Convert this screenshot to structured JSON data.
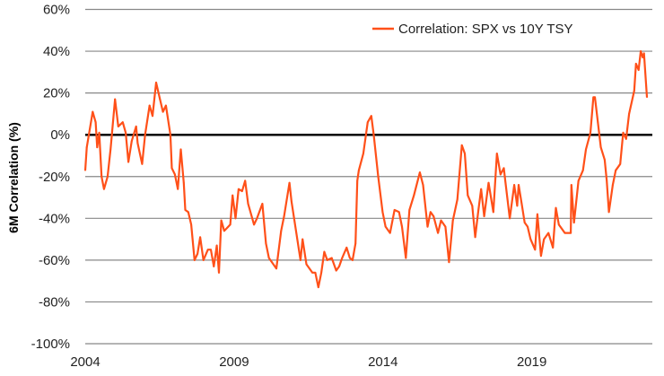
{
  "chart_data": {
    "type": "line",
    "title": "",
    "xlabel": "",
    "ylabel": "6M Correlation (%)",
    "xlim": [
      2004,
      2023.05
    ],
    "ylim": [
      -100,
      60
    ],
    "x_ticks": [
      2004,
      2009,
      2014,
      2019
    ],
    "x_tick_labels": [
      "2004",
      "2009",
      "2014",
      "2019"
    ],
    "y_ticks": [
      60,
      40,
      20,
      0,
      -20,
      -40,
      -60,
      -80,
      -100
    ],
    "y_tick_labels": [
      "60%",
      "40%",
      "20%",
      "0%",
      "-20%",
      "-40%",
      "-60%",
      "-80%",
      "-100%"
    ],
    "grid": "horizontal",
    "zero_line": true,
    "legend_position": "top-right",
    "series": [
      {
        "name": "Correlation: SPX vs 10Y TSY",
        "color": "#FF5019",
        "x": [
          2004.0,
          2004.05,
          2004.25,
          2004.35,
          2004.4,
          2004.47,
          2004.55,
          2004.63,
          2004.75,
          2004.85,
          2005.0,
          2005.11,
          2005.26,
          2005.36,
          2005.45,
          2005.56,
          2005.71,
          2005.76,
          2005.91,
          2006.01,
          2006.16,
          2006.26,
          2006.38,
          2006.51,
          2006.61,
          2006.71,
          2006.86,
          2006.91,
          2007.01,
          2007.11,
          2007.21,
          2007.31,
          2007.36,
          2007.46,
          2007.56,
          2007.67,
          2007.77,
          2007.86,
          2007.97,
          2008.12,
          2008.22,
          2008.32,
          2008.42,
          2008.49,
          2008.57,
          2008.67,
          2008.87,
          2008.95,
          2009.05,
          2009.15,
          2009.27,
          2009.37,
          2009.47,
          2009.67,
          2009.77,
          2009.95,
          2010.07,
          2010.17,
          2010.42,
          2010.58,
          2010.68,
          2010.86,
          2010.93,
          2011.08,
          2011.23,
          2011.3,
          2011.43,
          2011.63,
          2011.73,
          2011.83,
          2011.93,
          2012.03,
          2012.13,
          2012.28,
          2012.43,
          2012.53,
          2012.63,
          2012.78,
          2012.89,
          2012.98,
          2013.08,
          2013.14,
          2013.19,
          2013.34,
          2013.49,
          2013.61,
          2013.69,
          2013.84,
          2013.99,
          2014.09,
          2014.24,
          2014.39,
          2014.54,
          2014.64,
          2014.77,
          2014.89,
          2015.04,
          2015.24,
          2015.35,
          2015.5,
          2015.6,
          2015.7,
          2015.85,
          2015.95,
          2016.1,
          2016.22,
          2016.35,
          2016.5,
          2016.65,
          2016.75,
          2016.85,
          2017.0,
          2017.1,
          2017.2,
          2017.3,
          2017.4,
          2017.55,
          2017.71,
          2017.83,
          2017.95,
          2018.06,
          2018.11,
          2018.26,
          2018.41,
          2018.51,
          2018.56,
          2018.66,
          2018.76,
          2018.86,
          2018.96,
          2019.11,
          2019.19,
          2019.31,
          2019.41,
          2019.56,
          2019.71,
          2019.81,
          2019.91,
          2020.11,
          2020.31,
          2020.33,
          2020.42,
          2020.57,
          2020.72,
          2020.82,
          2020.97,
          2021.07,
          2021.12,
          2021.22,
          2021.32,
          2021.45,
          2021.52,
          2021.59,
          2021.72,
          2021.82,
          2021.97,
          2022.07,
          2022.17,
          2022.27,
          2022.44,
          2022.5,
          2022.59,
          2022.66,
          2022.73,
          2022.77,
          2022.87
        ],
        "y": [
          -17,
          -6,
          11,
          6,
          -6,
          1,
          -20,
          -26,
          -20,
          -7,
          17,
          4,
          6,
          1,
          -13,
          -3,
          4,
          -4,
          -14,
          0,
          14,
          9,
          25,
          17,
          11,
          14,
          0,
          -16,
          -19,
          -26,
          -7,
          -23,
          -36,
          -37,
          -43,
          -60,
          -57,
          -49,
          -60,
          -55,
          -55,
          -63,
          -53,
          -66,
          -41,
          -46,
          -43,
          -29,
          -40,
          -26,
          -27,
          -22,
          -33,
          -43,
          -40,
          -33,
          -52,
          -59,
          -64,
          -46,
          -39,
          -23,
          -32,
          -46,
          -60,
          -50,
          -62,
          -66,
          -66,
          -73,
          -66,
          -56,
          -60,
          -59,
          -65,
          -63,
          -59,
          -54,
          -59,
          -60,
          -52,
          -22,
          -17,
          -9,
          6,
          9,
          0,
          -20,
          -37,
          -44,
          -47,
          -36,
          -37,
          -44,
          -59,
          -36,
          -29,
          -18,
          -24,
          -44,
          -37,
          -39,
          -47,
          -41,
          -44,
          -61,
          -41,
          -31,
          -5,
          -9,
          -29,
          -34,
          -49,
          -37,
          -26,
          -39,
          -23,
          -37,
          -9,
          -19,
          -16,
          -22,
          -40,
          -24,
          -34,
          -24,
          -33,
          -42,
          -44,
          -50,
          -55,
          -38,
          -58,
          -50,
          -47,
          -54,
          -35,
          -43,
          -47,
          -47,
          -24,
          -42,
          -22,
          -17,
          -7,
          1,
          18,
          18,
          6,
          -6,
          -12,
          -22,
          -37,
          -24,
          -17,
          -14,
          1,
          -2,
          10,
          21,
          34,
          31,
          40,
          37,
          39,
          18
        ]
      }
    ]
  }
}
